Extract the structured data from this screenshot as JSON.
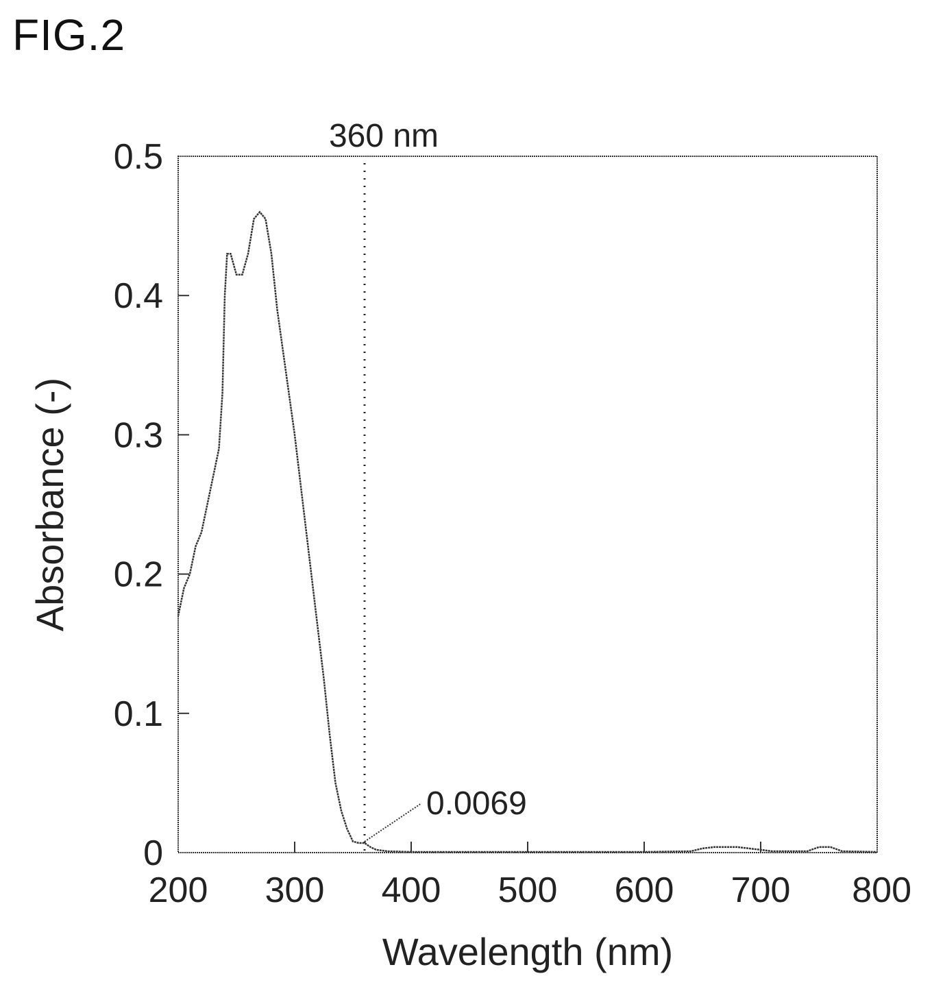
{
  "figure_label": "FIG.2",
  "chart_data": {
    "type": "line",
    "title": "",
    "xlabel": "Wavelength (nm)",
    "ylabel": "Absorbance (-)",
    "xlim": [
      200,
      800
    ],
    "ylim": [
      0,
      0.5
    ],
    "xticks": [
      200,
      300,
      400,
      500,
      600,
      700,
      800
    ],
    "yticks": [
      0,
      0.1,
      0.2,
      0.3,
      0.4,
      0.5
    ],
    "ytick_labels": [
      "0",
      "0.1",
      "0.2",
      "0.3",
      "0.4",
      "0.5"
    ],
    "grid": false,
    "series": [
      {
        "x": [
          200,
          205,
          210,
          215,
          220,
          225,
          230,
          235,
          238,
          240,
          242,
          245,
          250,
          255,
          260,
          265,
          270,
          275,
          280,
          285,
          290,
          295,
          300,
          305,
          310,
          315,
          320,
          325,
          330,
          335,
          340,
          345,
          350,
          355,
          360,
          365,
          370,
          380,
          400,
          500,
          600,
          640,
          650,
          660,
          670,
          680,
          690,
          700,
          710,
          740,
          750,
          760,
          770,
          800
        ],
        "y": [
          0.17,
          0.19,
          0.2,
          0.22,
          0.23,
          0.25,
          0.27,
          0.29,
          0.33,
          0.4,
          0.43,
          0.43,
          0.415,
          0.415,
          0.43,
          0.455,
          0.46,
          0.455,
          0.43,
          0.39,
          0.36,
          0.33,
          0.3,
          0.265,
          0.23,
          0.195,
          0.16,
          0.125,
          0.085,
          0.05,
          0.03,
          0.017,
          0.008,
          0.0069,
          0.0069,
          0.004,
          0.002,
          0.001,
          0.0005,
          0.0005,
          0.0005,
          0.001,
          0.003,
          0.004,
          0.004,
          0.004,
          0.003,
          0.002,
          0.001,
          0.001,
          0.004,
          0.004,
          0.001,
          0.0005
        ]
      }
    ],
    "vline": {
      "x": 360,
      "label": "360 nm"
    },
    "annotation": {
      "x": 360,
      "y": 0.0069,
      "label": "0.0069"
    }
  }
}
